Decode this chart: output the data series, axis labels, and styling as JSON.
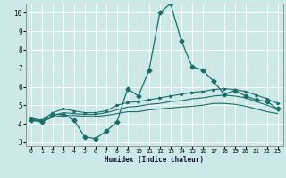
{
  "xlabel": "Humidex (Indice chaleur)",
  "xlim": [
    -0.5,
    23.5
  ],
  "ylim": [
    2.8,
    10.5
  ],
  "yticks": [
    3,
    4,
    5,
    6,
    7,
    8,
    9,
    10
  ],
  "xticks": [
    0,
    1,
    2,
    3,
    4,
    5,
    6,
    7,
    8,
    9,
    10,
    11,
    12,
    13,
    14,
    15,
    16,
    17,
    18,
    19,
    20,
    21,
    22,
    23
  ],
  "background_color": "#cce8e8",
  "grid_color": "#ffffff",
  "line_color": "#1a6e6a",
  "series": {
    "main": {
      "x": [
        0,
        1,
        2,
        3,
        4,
        5,
        6,
        7,
        8,
        9,
        10,
        11,
        12,
        13,
        14,
        15,
        16,
        17,
        18,
        19,
        20,
        21,
        22,
        23
      ],
      "y": [
        4.2,
        4.1,
        4.5,
        4.5,
        4.2,
        3.3,
        3.2,
        3.6,
        4.1,
        5.9,
        5.5,
        6.9,
        10.0,
        10.5,
        8.5,
        7.1,
        6.9,
        6.3,
        5.6,
        5.8,
        5.5,
        5.3,
        5.2,
        4.8
      ]
    },
    "upper": {
      "x": [
        0,
        1,
        2,
        3,
        4,
        5,
        6,
        7,
        8,
        9,
        10,
        11,
        12,
        13,
        14,
        15,
        16,
        17,
        18,
        19,
        20,
        21,
        22,
        23
      ],
      "y": [
        4.3,
        4.2,
        4.6,
        4.8,
        4.7,
        4.6,
        4.6,
        4.7,
        5.0,
        5.15,
        5.2,
        5.3,
        5.4,
        5.5,
        5.6,
        5.7,
        5.75,
        5.85,
        5.9,
        5.85,
        5.75,
        5.55,
        5.35,
        5.1
      ]
    },
    "mid": {
      "x": [
        0,
        1,
        2,
        3,
        4,
        5,
        6,
        7,
        8,
        9,
        10,
        11,
        12,
        13,
        14,
        15,
        16,
        17,
        18,
        19,
        20,
        21,
        22,
        23
      ],
      "y": [
        4.25,
        4.15,
        4.45,
        4.6,
        4.55,
        4.5,
        4.5,
        4.6,
        4.75,
        4.9,
        4.95,
        5.05,
        5.1,
        5.2,
        5.25,
        5.35,
        5.4,
        5.5,
        5.55,
        5.5,
        5.4,
        5.2,
        5.0,
        4.8
      ]
    },
    "lower": {
      "x": [
        0,
        1,
        2,
        3,
        4,
        5,
        6,
        7,
        8,
        9,
        10,
        11,
        12,
        13,
        14,
        15,
        16,
        17,
        18,
        19,
        20,
        21,
        22,
        23
      ],
      "y": [
        4.2,
        4.1,
        4.35,
        4.45,
        4.45,
        4.4,
        4.4,
        4.45,
        4.55,
        4.65,
        4.65,
        4.75,
        4.8,
        4.85,
        4.9,
        4.95,
        5.0,
        5.1,
        5.1,
        5.05,
        4.95,
        4.8,
        4.65,
        4.55
      ]
    }
  }
}
